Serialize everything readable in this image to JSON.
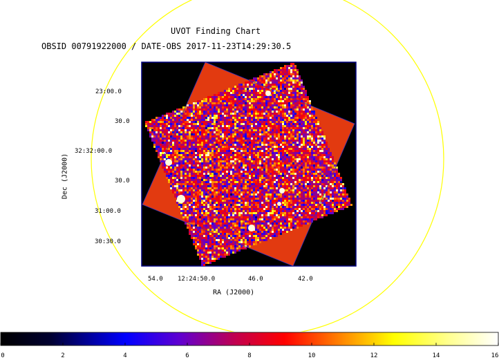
{
  "chart": {
    "title": "UVOT Finding Chart",
    "subtitle": "OBSID 00791922000 / DATE-OBS 2017-11-23T14:29:30.5",
    "ra_label": "RA (J2000)",
    "dec_label": "Dec (J2000)",
    "dec_ticks": [
      "23:00.0",
      "30.0",
      "32:32:00.0",
      "30.0",
      "31:00.0",
      "30:30.0"
    ],
    "ra_ticks": [
      "54.0",
      "12:24:50.0",
      "46.0",
      "42.0"
    ],
    "colorbar_ticks": [
      "0",
      "2",
      "4",
      "6",
      "8",
      "10",
      "12",
      "14",
      "16"
    ],
    "colorbar_range": [
      0,
      16
    ],
    "colors": {
      "circle": "#ffff00",
      "frame": "#000080",
      "background": "#000000"
    }
  }
}
